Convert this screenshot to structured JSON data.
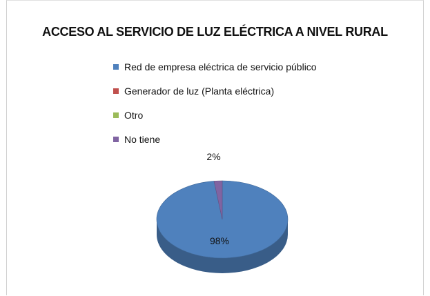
{
  "chart_data": {
    "type": "pie",
    "title": "ACCESO AL SERVICIO DE LUZ ELÉCTRICA A NIVEL RURAL",
    "categories": [
      "Red de empresa eléctrica de servicio público",
      "Generador de luz (Planta eléctrica)",
      "Otro",
      "No tiene"
    ],
    "values": [
      98,
      0,
      0,
      2
    ],
    "data_labels": [
      "98%",
      "",
      "",
      "2%"
    ],
    "colors": [
      "#4F81BD",
      "#C0504D",
      "#9BBB59",
      "#8064A2"
    ],
    "legend_position": "top",
    "three_d": true
  }
}
